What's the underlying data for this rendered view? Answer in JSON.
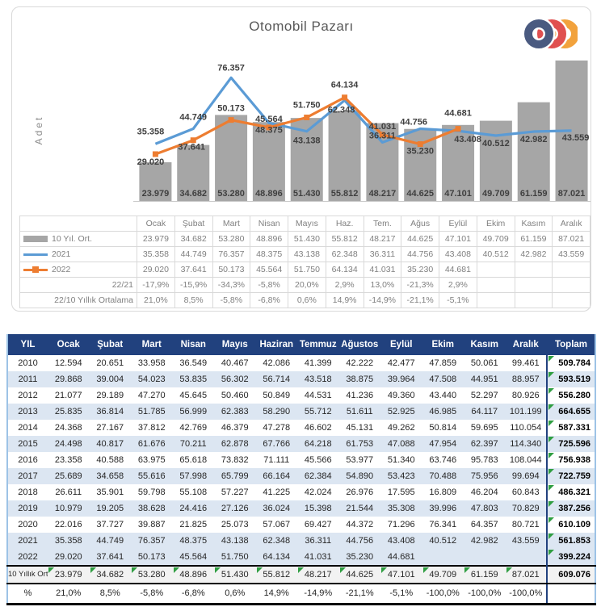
{
  "title": "Otomobil Pazarı",
  "logo": {
    "name": "ODD",
    "colors": {
      "navy": "#4A5A80",
      "red": "#E05050",
      "orange": "#F2A23C"
    }
  },
  "chart_data": {
    "type": "combo",
    "title": "Otomobil Pazarı",
    "ylabel": "Adet",
    "categories": [
      "Ocak",
      "Şubat",
      "Mart",
      "Nisan",
      "Mayıs",
      "Haz.",
      "Tem.",
      "Ağus",
      "Eylül",
      "Ekim",
      "Kasım",
      "Aralık"
    ],
    "series": [
      {
        "name": "10 Yıl. Ort.",
        "type": "bar",
        "color": "#A6A6A6",
        "values": [
          "23.979",
          "34.682",
          "53.280",
          "48.896",
          "51.430",
          "55.812",
          "48.217",
          "44.625",
          "47.101",
          "49.709",
          "61.159",
          "87.021"
        ]
      },
      {
        "name": "2021",
        "type": "line",
        "color": "#5B9BD5",
        "values": [
          "35.358",
          "44.749",
          "76.357",
          "48.375",
          "43.138",
          "62.348",
          "36.311",
          "44.756",
          "43.408",
          "40.512",
          "42.982",
          "43.559"
        ]
      },
      {
        "name": "2022",
        "type": "line",
        "color": "#ED7D31",
        "marker": "square",
        "values": [
          "29.020",
          "37.641",
          "50.173",
          "45.564",
          "51.750",
          "64.134",
          "41.031",
          "35.230",
          "44.681"
        ]
      }
    ],
    "comparison_rows": [
      {
        "name": "22/21",
        "values": [
          "-17,9%",
          "-15,9%",
          "-34,3%",
          "-5,8%",
          "20,0%",
          "2,9%",
          "13,0%",
          "-21,3%",
          "2,9%",
          "",
          "",
          ""
        ]
      },
      {
        "name": "22/10 Yıllık Ortalama",
        "values": [
          "21,0%",
          "8,5%",
          "-5,8%",
          "-6,8%",
          "0,6%",
          "14,9%",
          "-14,9%",
          "-21,1%",
          "-5,1%",
          "",
          "",
          ""
        ]
      }
    ],
    "ylim": [
      0,
      100000
    ],
    "grid": false,
    "legend_position": "table-below"
  },
  "bottom_table": {
    "headers": [
      "YIL",
      "Ocak",
      "Şubat",
      "Mart",
      "Nisan",
      "Mayıs",
      "Haziran",
      "Temmuz",
      "Ağustos",
      "Eylül",
      "Ekim",
      "Kasım",
      "Aralık",
      "Toplam"
    ],
    "rows": [
      {
        "year": "2010",
        "values": [
          "12.594",
          "20.651",
          "33.958",
          "36.549",
          "40.467",
          "42.086",
          "41.399",
          "42.222",
          "42.477",
          "47.859",
          "50.061",
          "99.461"
        ],
        "total": "509.784"
      },
      {
        "year": "2011",
        "values": [
          "29.868",
          "39.004",
          "54.023",
          "53.835",
          "56.302",
          "56.714",
          "43.518",
          "38.875",
          "39.964",
          "47.508",
          "44.951",
          "88.957"
        ],
        "total": "593.519"
      },
      {
        "year": "2012",
        "values": [
          "21.077",
          "29.189",
          "47.270",
          "45.645",
          "50.460",
          "50.849",
          "44.531",
          "41.236",
          "49.360",
          "43.440",
          "52.297",
          "80.926"
        ],
        "total": "556.280"
      },
      {
        "year": "2013",
        "values": [
          "25.835",
          "36.814",
          "51.785",
          "56.999",
          "62.383",
          "58.290",
          "55.712",
          "51.611",
          "52.925",
          "46.985",
          "64.117",
          "101.199"
        ],
        "total": "664.655"
      },
      {
        "year": "2014",
        "values": [
          "24.368",
          "27.167",
          "37.812",
          "42.769",
          "46.379",
          "47.278",
          "46.602",
          "45.131",
          "49.262",
          "50.814",
          "59.695",
          "110.054"
        ],
        "total": "587.331"
      },
      {
        "year": "2015",
        "values": [
          "24.498",
          "40.817",
          "61.676",
          "70.211",
          "62.878",
          "67.766",
          "64.218",
          "61.753",
          "47.088",
          "47.954",
          "62.397",
          "114.340"
        ],
        "total": "725.596"
      },
      {
        "year": "2016",
        "values": [
          "23.358",
          "40.588",
          "63.975",
          "65.618",
          "73.832",
          "71.111",
          "45.566",
          "53.977",
          "51.340",
          "63.746",
          "95.783",
          "108.044"
        ],
        "total": "756.938"
      },
      {
        "year": "2017",
        "values": [
          "25.689",
          "34.658",
          "55.616",
          "57.998",
          "65.799",
          "66.164",
          "62.384",
          "54.890",
          "53.423",
          "70.488",
          "75.956",
          "99.694"
        ],
        "total": "722.759"
      },
      {
        "year": "2018",
        "values": [
          "26.611",
          "35.901",
          "59.798",
          "55.108",
          "57.227",
          "41.225",
          "42.024",
          "26.976",
          "17.595",
          "16.809",
          "46.204",
          "60.843"
        ],
        "total": "486.321"
      },
      {
        "year": "2019",
        "values": [
          "10.979",
          "19.205",
          "38.628",
          "24.416",
          "27.126",
          "36.024",
          "15.398",
          "21.544",
          "35.308",
          "39.996",
          "47.803",
          "70.829"
        ],
        "total": "387.256"
      },
      {
        "year": "2020",
        "values": [
          "22.016",
          "37.727",
          "39.887",
          "21.825",
          "25.073",
          "57.067",
          "69.427",
          "44.372",
          "71.296",
          "76.341",
          "64.357",
          "80.721"
        ],
        "total": "610.109"
      },
      {
        "year": "2021",
        "values": [
          "35.358",
          "44.749",
          "76.357",
          "48.375",
          "43.138",
          "62.348",
          "36.311",
          "44.756",
          "43.408",
          "40.512",
          "42.982",
          "43.559"
        ],
        "total": "561.853"
      },
      {
        "year": "2022",
        "values": [
          "29.020",
          "37.641",
          "50.173",
          "45.564",
          "51.750",
          "64.134",
          "41.031",
          "35.230",
          "44.681",
          "",
          "",
          ""
        ],
        "total": "399.224"
      }
    ],
    "avg_row": {
      "label": "10 Yıllık Ort.",
      "values": [
        "23.979",
        "34.682",
        "53.280",
        "48.896",
        "51.430",
        "55.812",
        "48.217",
        "44.625",
        "47.101",
        "49.709",
        "61.159",
        "87.021"
      ],
      "total": "609.076"
    },
    "pct_row": {
      "label": "%",
      "values": [
        "21,0%",
        "8,5%",
        "-5,8%",
        "-6,8%",
        "0,6%",
        "14,9%",
        "-14,9%",
        "-21,1%",
        "-5,1%",
        "-100,0%",
        "-100,0%",
        "-100,0%"
      ],
      "total": ""
    }
  },
  "colors": {
    "header_bg": "#21417E",
    "stripe": "#DCE6F2",
    "avg_row_bg": "#F2F2F2",
    "bar": "#A6A6A6",
    "line_2021": "#5B9BD5",
    "line_2022": "#ED7D31",
    "flag_triangle": "#2F9E41",
    "card_border": "#D9D9D9"
  }
}
